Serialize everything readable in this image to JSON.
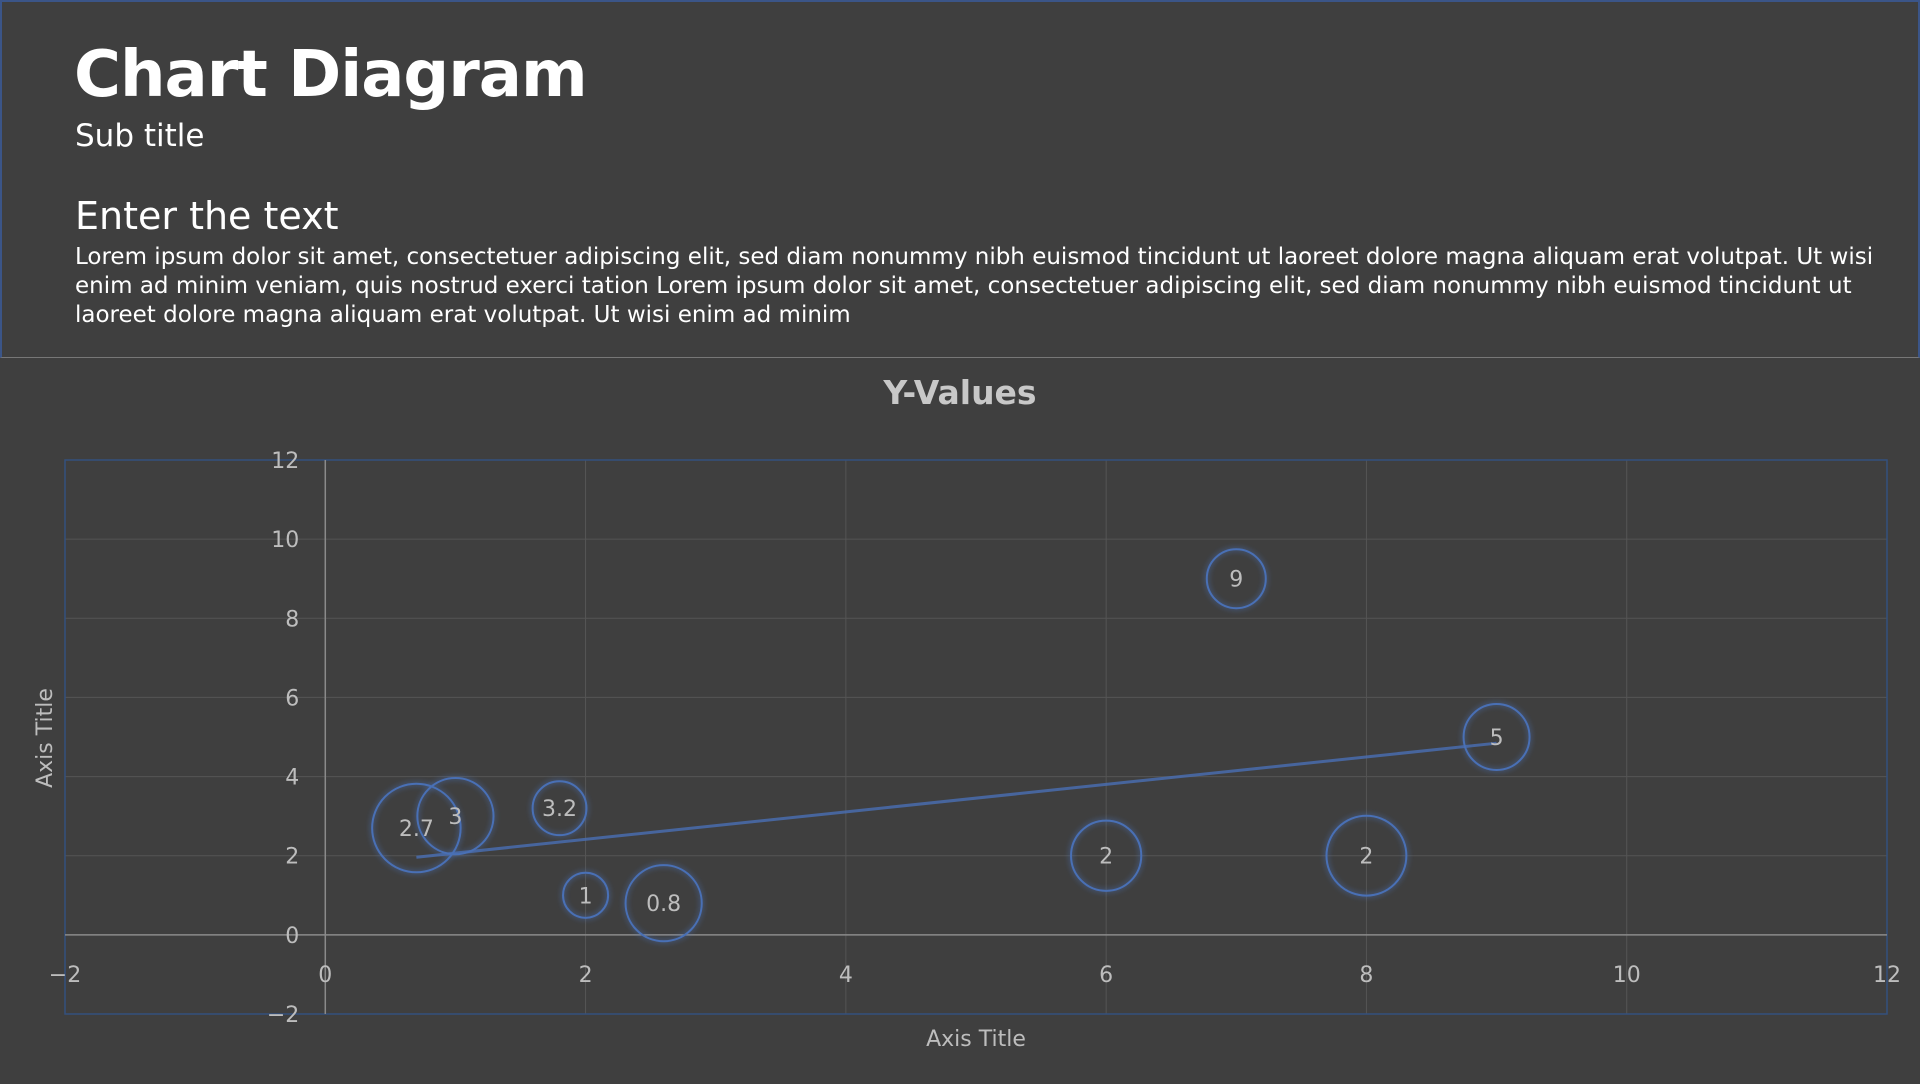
{
  "header": {
    "title": "Chart Diagram",
    "subtitle": "Sub title",
    "heading": "Enter the text",
    "body": "Lorem ipsum dolor sit amet, consectetuer adipiscing elit, sed diam nonummy nibh euismod tincidunt ut laoreet dolore magna aliquam erat volutpat. Ut wisi enim ad minim veniam, quis nostrud exerci tation Lorem ipsum dolor sit amet, consectetuer adipiscing elit, sed diam nonummy nibh euismod tincidunt ut laoreet dolore magna aliquam erat volutpat. Ut wisi enim ad minim"
  },
  "chart_data": {
    "type": "bubble",
    "title": "Y-Values",
    "xlabel": "Axis Title",
    "ylabel": "Axis Title",
    "xlim": [
      -2,
      12
    ],
    "ylim": [
      -2,
      12
    ],
    "x_ticks": [
      -2,
      0,
      2,
      4,
      6,
      8,
      10,
      12
    ],
    "y_ticks": [
      -2,
      0,
      2,
      4,
      6,
      8,
      10,
      12
    ],
    "grid": true,
    "trendline": "linear",
    "points": [
      {
        "x": 0.7,
        "y": 2.7,
        "size": 2.7,
        "label": "2.7"
      },
      {
        "x": 1.0,
        "y": 3.0,
        "size": 2.0,
        "label": "3"
      },
      {
        "x": 1.8,
        "y": 3.2,
        "size": 1.0,
        "label": "3.2"
      },
      {
        "x": 2.0,
        "y": 1.0,
        "size": 0.7,
        "label": "1"
      },
      {
        "x": 2.6,
        "y": 0.8,
        "size": 2.0,
        "label": "0.8"
      },
      {
        "x": 6.0,
        "y": 2.0,
        "size": 1.7,
        "label": "2"
      },
      {
        "x": 7.0,
        "y": 9.0,
        "size": 1.2,
        "label": "9"
      },
      {
        "x": 8.0,
        "y": 2.0,
        "size": 2.2,
        "label": "2"
      },
      {
        "x": 9.0,
        "y": 5.0,
        "size": 1.5,
        "label": "5"
      }
    ],
    "colors": {
      "bubble_stroke": "#4a6fb5",
      "trendline": "#4a6fb5",
      "grid": "#555555",
      "axis": "#8a8a8a",
      "plot_border": "#34507e",
      "text": "#bdbdbd",
      "title": "#c8c8c8"
    }
  }
}
